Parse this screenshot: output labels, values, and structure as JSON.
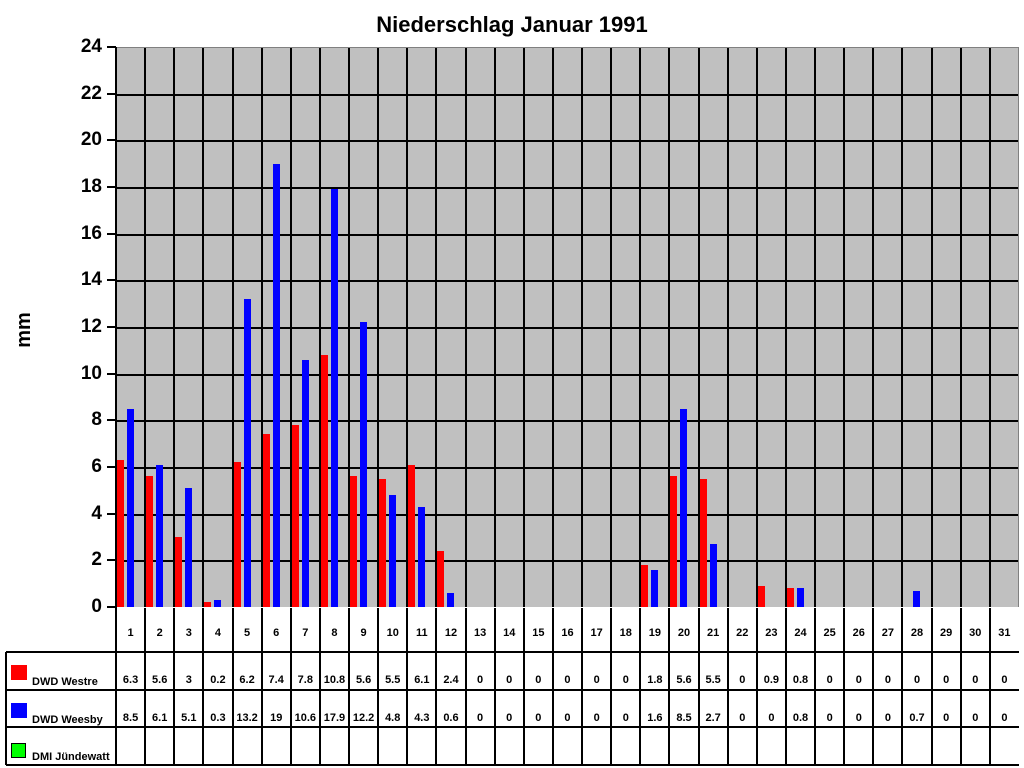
{
  "title": "Niederschlag Januar 1991",
  "chart_data": {
    "type": "bar",
    "title": "Niederschlag Januar 1991",
    "xlabel": "",
    "ylabel": "mm",
    "ylim": [
      0,
      24
    ],
    "yticks": [
      0,
      2,
      4,
      6,
      8,
      10,
      12,
      14,
      16,
      18,
      20,
      22,
      24
    ],
    "grid": true,
    "legend_position": "data-table-left",
    "categories": [
      "1",
      "2",
      "3",
      "4",
      "5",
      "6",
      "7",
      "8",
      "9",
      "10",
      "11",
      "12",
      "13",
      "14",
      "15",
      "16",
      "17",
      "18",
      "19",
      "20",
      "21",
      "22",
      "23",
      "24",
      "25",
      "26",
      "27",
      "28",
      "29",
      "30",
      "31"
    ],
    "series": [
      {
        "name": "DWD Westre",
        "color": "#ff0000",
        "values": [
          6.3,
          5.6,
          3,
          0.2,
          6.2,
          7.4,
          7.8,
          10.8,
          5.6,
          5.5,
          6.1,
          2.4,
          0,
          0,
          0,
          0,
          0,
          0,
          1.8,
          5.6,
          5.5,
          0,
          0.9,
          0.8,
          0,
          0,
          0,
          0,
          0,
          0,
          0
        ]
      },
      {
        "name": "DWD Weesby",
        "color": "#0000ff",
        "values": [
          8.5,
          6.1,
          5.1,
          0.3,
          13.2,
          19,
          10.6,
          17.9,
          12.2,
          4.8,
          4.3,
          0.6,
          0,
          0,
          0,
          0,
          0,
          0,
          1.6,
          8.5,
          2.7,
          0,
          0,
          0.8,
          0,
          0,
          0,
          0.7,
          0,
          0,
          0
        ]
      },
      {
        "name": "DMI Jündewatt",
        "color": "#00ff00",
        "values": []
      }
    ]
  },
  "table": {
    "westre_values": [
      "6.3",
      "5.6",
      "3",
      "0.2",
      "6.2",
      "7.4",
      "7.8",
      "10.8",
      "5.6",
      "5.5",
      "6.1",
      "2.4",
      "0",
      "0",
      "0",
      "0",
      "0",
      "0",
      "1.8",
      "5.6",
      "5.5",
      "0",
      "0.9",
      "0.8",
      "0",
      "0",
      "0",
      "0",
      "0",
      "0",
      "0"
    ],
    "weesby_values": [
      "8.5",
      "6.1",
      "5.1",
      "0.3",
      "13.2",
      "19",
      "10.6",
      "17.9",
      "12.2",
      "4.8",
      "4.3",
      "0.6",
      "0",
      "0",
      "0",
      "0",
      "0",
      "0",
      "1.6",
      "8.5",
      "2.7",
      "0",
      "0",
      "0.8",
      "0",
      "0",
      "0",
      "0.7",
      "0",
      "0",
      "0"
    ]
  },
  "plot_bg": "#c0c0c0"
}
